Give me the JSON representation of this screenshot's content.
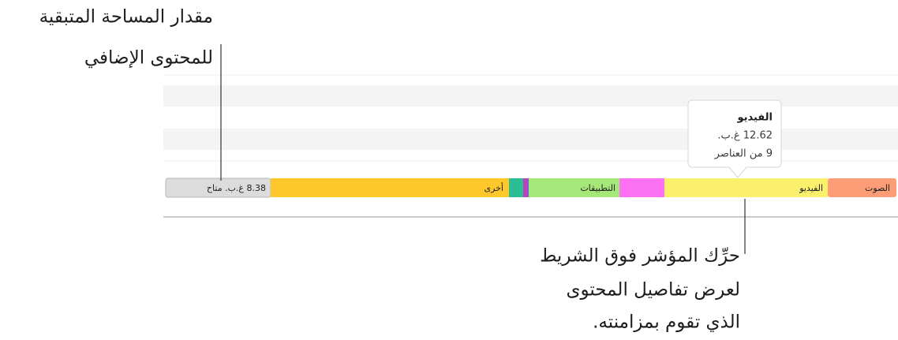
{
  "callouts": {
    "top": [
      "مقدار المساحة المتبقية",
      "للمحتوى الإضافي"
    ],
    "bottom": [
      "حرِّك المؤشر فوق الشريط",
      "لعرض تفاصيل المحتوى",
      "الذي تقوم بمزامنته."
    ]
  },
  "tooltip": {
    "title": "الفيديو",
    "size": "12.62 غ.ب.",
    "items": "9 من العناصر"
  },
  "bar": {
    "free": "8.38 غ.ب. متاح",
    "segments": [
      "الصوت",
      "الفيديو",
      "التطبيقات",
      "أخرى"
    ]
  }
}
